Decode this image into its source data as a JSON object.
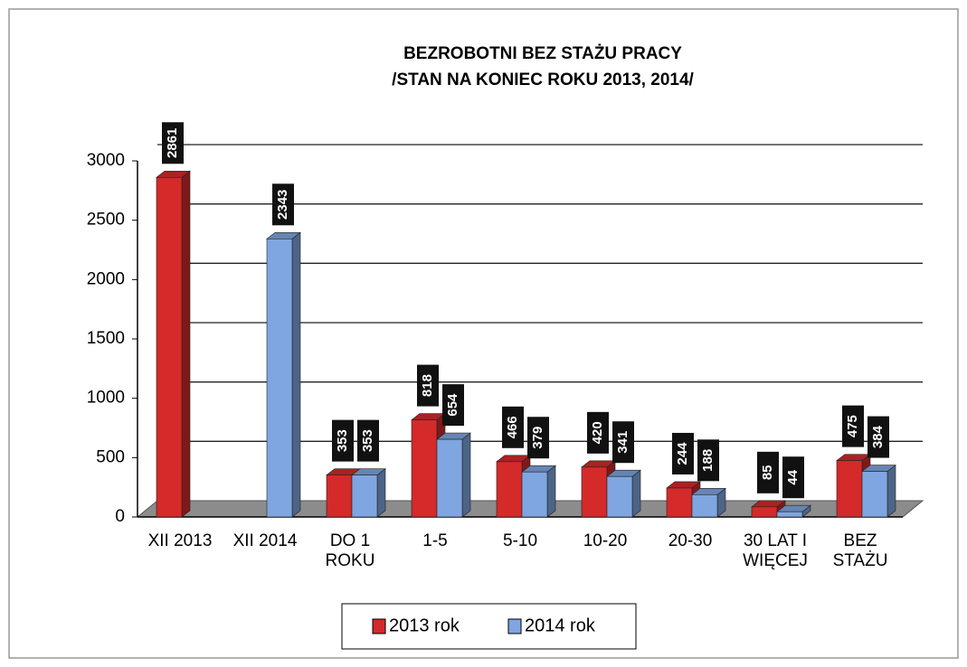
{
  "chart_data": {
    "type": "bar3d",
    "title": "BEZROBOTNI BEZ STAŻU PRACY",
    "subtitle": "/STAN NA KONIEC ROKU 2013, 2014/",
    "categories": [
      "XII 2013",
      "XII 2014",
      "DO 1 ROKU",
      "1-5",
      "5-10",
      "10-20",
      "20-30",
      "30 LAT I WIĘCEJ",
      "BEZ STAŻU"
    ],
    "series": [
      {
        "name": "2013 rok",
        "color": "#d42a2a",
        "values": [
          2861,
          null,
          353,
          818,
          466,
          420,
          244,
          85,
          475
        ]
      },
      {
        "name": "2014 rok",
        "color": "#7fa6e0",
        "values": [
          null,
          2343,
          353,
          654,
          379,
          341,
          188,
          44,
          384
        ]
      }
    ],
    "ylim": [
      0,
      3000
    ],
    "yticks": [
      0,
      500,
      1000,
      1500,
      2000,
      2500,
      3000
    ],
    "grid": true,
    "legend": "bottom"
  }
}
